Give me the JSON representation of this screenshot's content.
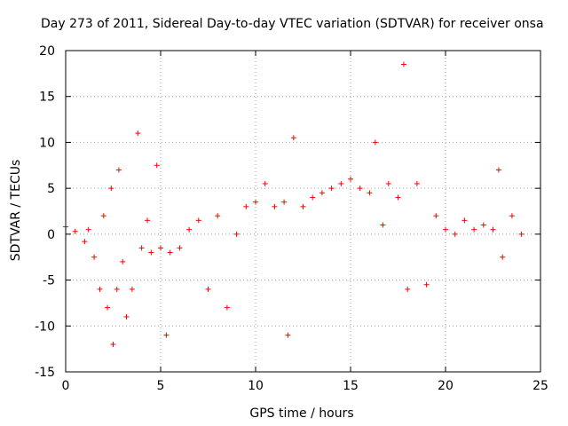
{
  "chart_data": {
    "type": "scatter",
    "title": "Day 273 of 2011, Sidereal Day-to-day VTEC variation (SDTVAR) for receiver onsa",
    "xlabel": "GPS time / hours",
    "ylabel": "SDTVAR / TECUs",
    "xlim": [
      0,
      25
    ],
    "ylim": [
      -15,
      20
    ],
    "xticks": [
      0,
      5,
      10,
      15,
      20,
      25
    ],
    "yticks": [
      -15,
      -10,
      -5,
      0,
      5,
      10,
      15,
      20
    ],
    "grid": true,
    "marker": "plus",
    "color": "#ff0000",
    "series": [
      {
        "name": "SDTVAR",
        "x": [
          0.0,
          0.5,
          1.0,
          1.2,
          1.5,
          1.8,
          2.0,
          2.2,
          2.4,
          2.5,
          2.7,
          2.8,
          3.0,
          3.2,
          3.5,
          3.8,
          4.0,
          4.3,
          4.5,
          4.8,
          5.0,
          5.3,
          5.5,
          6.0,
          6.5,
          7.0,
          7.5,
          8.0,
          8.5,
          9.0,
          9.5,
          10.0,
          10.5,
          11.0,
          11.5,
          11.7,
          12.0,
          12.5,
          13.0,
          13.5,
          14.0,
          14.5,
          15.0,
          15.5,
          16.0,
          16.3,
          16.7,
          17.0,
          17.5,
          17.8,
          18.0,
          18.5,
          19.0,
          19.5,
          20.0,
          20.5,
          21.0,
          21.5,
          22.0,
          22.5,
          22.8,
          23.0,
          23.5,
          24.0
        ],
        "y": [
          0.8,
          0.3,
          -0.8,
          0.5,
          -2.5,
          -6.0,
          2.0,
          -8.0,
          5.0,
          -12.0,
          -6.0,
          7.0,
          -3.0,
          -9.0,
          -6.0,
          11.0,
          -1.5,
          1.5,
          -2.0,
          7.5,
          -1.5,
          -11.0,
          -2.0,
          -1.5,
          0.5,
          1.5,
          -6.0,
          2.0,
          -8.0,
          0.0,
          3.0,
          3.5,
          5.5,
          3.0,
          3.5,
          -11.0,
          10.5,
          3.0,
          4.0,
          4.5,
          5.0,
          5.5,
          6.0,
          5.0,
          4.5,
          10.0,
          1.0,
          5.5,
          4.0,
          18.5,
          -6.0,
          5.5,
          -5.5,
          2.0,
          0.5,
          0.0,
          1.5,
          0.5,
          1.0,
          0.5,
          7.0,
          -2.5,
          2.0,
          0.0
        ]
      }
    ]
  }
}
